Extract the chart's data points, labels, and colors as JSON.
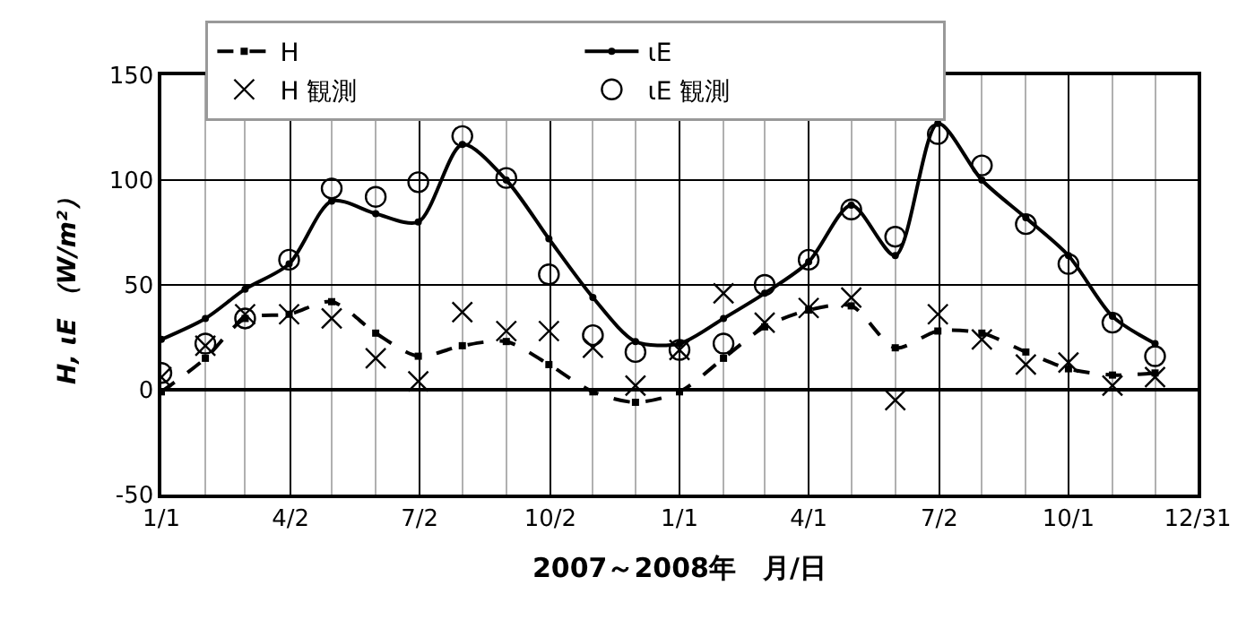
{
  "chart_data": {
    "type": "line",
    "xlabel": "2007～2008年　月/日",
    "ylabel": "H, ιE （W/m²）",
    "x": [
      "2007-01-01",
      "2007-02-01",
      "2007-03-01",
      "2007-04-01",
      "2007-05-01",
      "2007-06-01",
      "2007-07-01",
      "2007-08-01",
      "2007-09-01",
      "2007-10-01",
      "2007-11-01",
      "2007-12-01",
      "2008-01-01",
      "2008-02-01",
      "2008-03-01",
      "2008-04-01",
      "2008-05-01",
      "2008-06-01",
      "2008-07-01",
      "2008-08-01",
      "2008-09-01",
      "2008-10-01",
      "2008-11-01",
      "2008-12-01"
    ],
    "series": [
      {
        "name": "H",
        "color": "#000000",
        "line_style": "dashed",
        "marker": "square",
        "values": [
          -1,
          15,
          34,
          36,
          42,
          27,
          16,
          21,
          23,
          12,
          -1,
          -6,
          -1,
          15,
          30,
          38,
          40,
          20,
          28,
          27,
          18,
          10,
          7,
          8
        ]
      },
      {
        "name": "ιE",
        "color": "#000000",
        "line_style": "solid",
        "marker": "circle",
        "values": [
          24,
          34,
          48,
          60,
          90,
          84,
          80,
          117,
          100,
          72,
          44,
          23,
          22,
          34,
          46,
          61,
          88,
          64,
          127,
          100,
          82,
          64,
          35,
          22
        ]
      },
      {
        "name": "H 観測",
        "type": "scatter",
        "color": "#000000",
        "marker": "cross",
        "values": [
          6,
          21,
          36,
          36,
          34,
          15,
          4,
          37,
          28,
          28,
          20,
          2,
          19,
          46,
          32,
          39,
          44,
          -5,
          36,
          24,
          12,
          13,
          2,
          6
        ]
      },
      {
        "name": "ιE 観測",
        "type": "scatter",
        "color": "#000000",
        "marker": "circle",
        "values": [
          8,
          22,
          34,
          62,
          96,
          92,
          99,
          121,
          101,
          55,
          26,
          18,
          19,
          22,
          50,
          62,
          86,
          73,
          122,
          107,
          79,
          60,
          32,
          16
        ]
      }
    ],
    "xlim": [
      "2007-01-01",
      "2008-12-31"
    ],
    "xticks": [
      {
        "value": "2007-01-01",
        "label": "1/1"
      },
      {
        "value": "2007-02-01",
        "label": null
      },
      {
        "value": "2007-03-01",
        "label": null
      },
      {
        "value": "2007-04-02",
        "label": "4/2"
      },
      {
        "value": "2007-05-01",
        "label": null
      },
      {
        "value": "2007-06-01",
        "label": null
      },
      {
        "value": "2007-07-02",
        "label": "7/2"
      },
      {
        "value": "2007-08-01",
        "label": null
      },
      {
        "value": "2007-09-01",
        "label": null
      },
      {
        "value": "2007-10-02",
        "label": "10/2"
      },
      {
        "value": "2007-11-01",
        "label": null
      },
      {
        "value": "2007-12-01",
        "label": null
      },
      {
        "value": "2008-01-01",
        "label": "1/1"
      },
      {
        "value": "2008-02-01",
        "label": null
      },
      {
        "value": "2008-03-01",
        "label": null
      },
      {
        "value": "2008-04-01",
        "label": "4/1"
      },
      {
        "value": "2008-05-01",
        "label": null
      },
      {
        "value": "2008-06-01",
        "label": null
      },
      {
        "value": "2008-07-02",
        "label": "7/2"
      },
      {
        "value": "2008-08-01",
        "label": null
      },
      {
        "value": "2008-09-01",
        "label": null
      },
      {
        "value": "2008-10-01",
        "label": "10/1"
      },
      {
        "value": "2008-11-01",
        "label": null
      },
      {
        "value": "2008-12-01",
        "label": null
      },
      {
        "value": "2008-12-31",
        "label": "12/31"
      }
    ],
    "ylim": [
      -50,
      150
    ],
    "yticks": [
      -50,
      0,
      50,
      100,
      150
    ],
    "grid": true,
    "legend": "top"
  }
}
